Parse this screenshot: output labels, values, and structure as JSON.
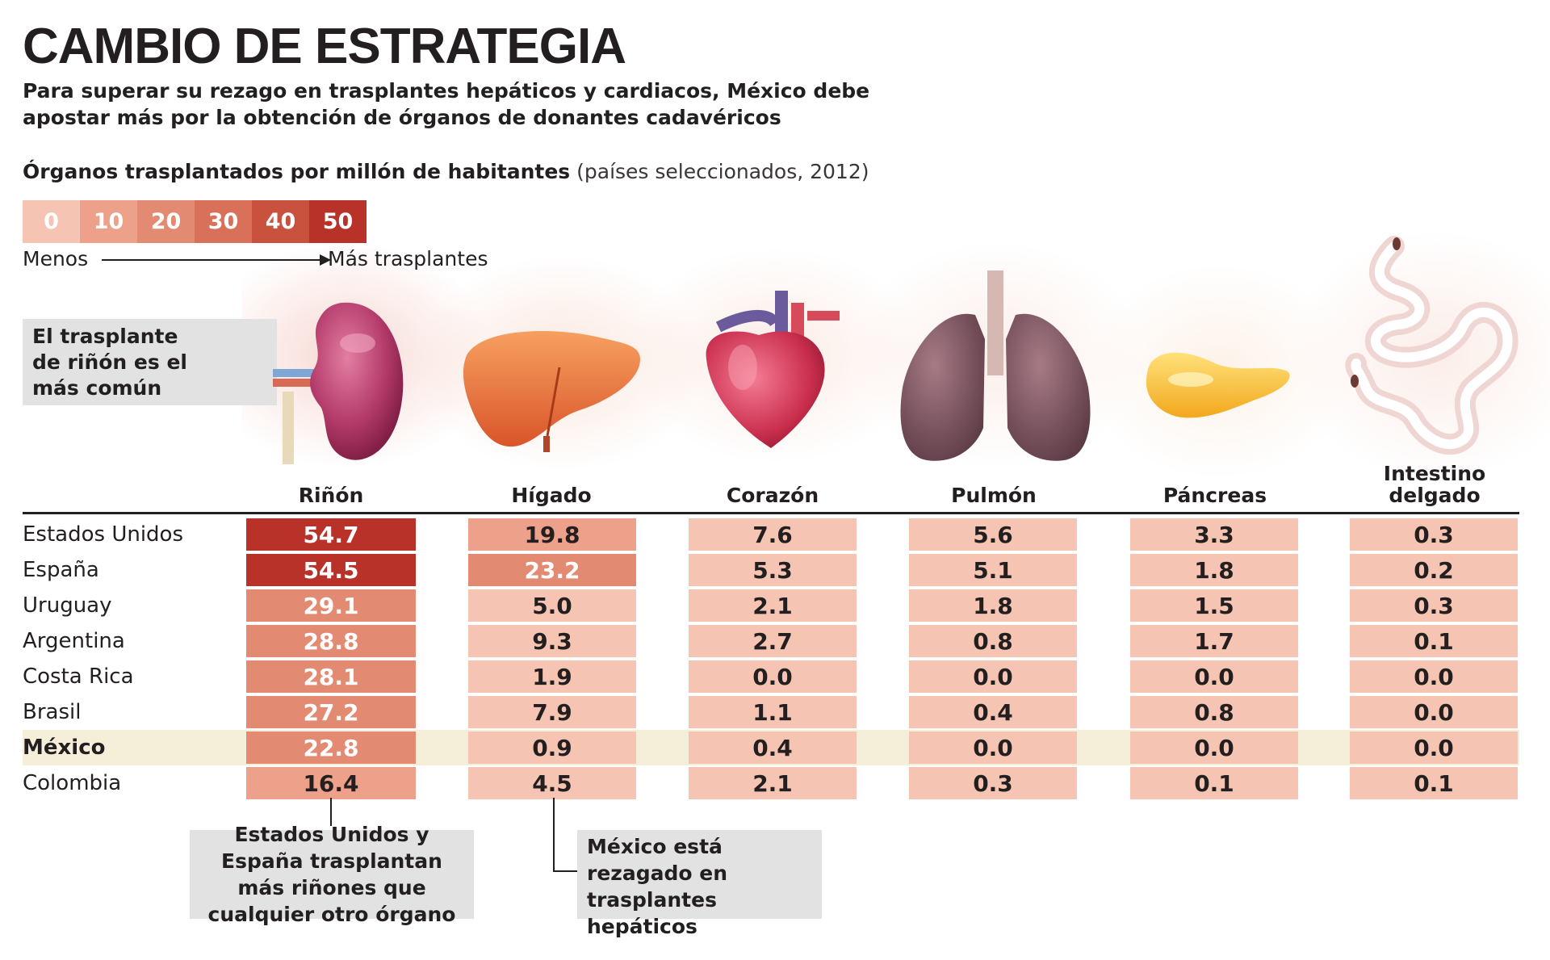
{
  "header": {
    "title": "CAMBIO DE ESTRATEGIA",
    "subtitle": "Para superar su rezago en trasplantes hepáticos y cardiacos, México debe apostar más por la obtención de órganos de donantes cadavéricos",
    "chart_title_bold": "Órganos trasplantados por millón de habitantes",
    "chart_title_note": "(países seleccionados, 2012)"
  },
  "legend": {
    "steps": [
      "0",
      "10",
      "20",
      "30",
      "40",
      "50"
    ],
    "colors": [
      "#f6c4b2",
      "#eda08a",
      "#e38a72",
      "#d8705a",
      "#c9523f",
      "#b83229"
    ],
    "less_label": "Menos",
    "more_label": "Más trasplantes"
  },
  "callouts": {
    "top_left": "El trasplante de riñón es el más común",
    "bottom_kidney": "Estados Unidos y España trasplantan más riñones que cualquier otro órgano",
    "bottom_liver": "México está rezagado en trasplantes hepáticos"
  },
  "icons": {
    "kidney": "kidney-icon",
    "liver": "liver-icon",
    "heart": "heart-icon",
    "lungs": "lungs-icon",
    "pancreas": "pancreas-icon",
    "intestine": "intestine-icon"
  },
  "highlight_color": "#f5eed9",
  "chart_data": {
    "type": "table",
    "title": "Órganos trasplantados por millón de habitantes",
    "columns": [
      "Riñón",
      "Hígado",
      "Corazón",
      "Pulmón",
      "Páncreas",
      "Intestino delgado"
    ],
    "rows": [
      "Estados Unidos",
      "España",
      "Uruguay",
      "Argentina",
      "Costa Rica",
      "Brasil",
      "México",
      "Colombia"
    ],
    "highlight_row": "México",
    "values": [
      [
        "54.7",
        "19.8",
        "7.6",
        "5.6",
        "3.3",
        "0.3"
      ],
      [
        "54.5",
        "23.2",
        "5.3",
        "5.1",
        "1.8",
        "0.2"
      ],
      [
        "29.1",
        "5.0",
        "2.1",
        "1.8",
        "1.5",
        "0.3"
      ],
      [
        "28.8",
        "9.3",
        "2.7",
        "0.8",
        "1.7",
        "0.1"
      ],
      [
        "28.1",
        "1.9",
        "0.0",
        "0.0",
        "0.0",
        "0.0"
      ],
      [
        "27.2",
        "7.9",
        "1.1",
        "0.4",
        "0.8",
        "0.0"
      ],
      [
        "22.8",
        "0.9",
        "0.4",
        "0.0",
        "0.0",
        "0.0"
      ],
      [
        "16.4",
        "4.5",
        "2.1",
        "0.3",
        "0.1",
        "0.1"
      ]
    ]
  }
}
